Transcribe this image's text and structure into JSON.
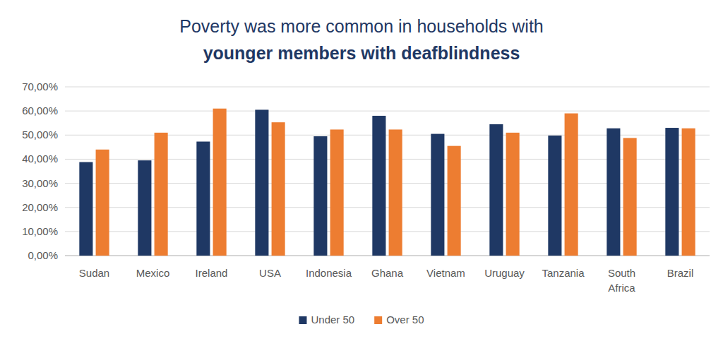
{
  "chart_data": {
    "type": "bar",
    "title": "Poverty was more common in households with",
    "subtitle": "younger members with deafblindness",
    "categories": [
      "Sudan",
      "Mexico",
      "Ireland",
      "USA",
      "Indonesia",
      "Ghana",
      "Vietnam",
      "Uruguay",
      "Tanzania",
      "South Africa",
      "Brazil"
    ],
    "series": [
      {
        "name": "Under 50",
        "color": "#1f3864",
        "values": [
          38.8,
          39.5,
          47.3,
          60.5,
          49.5,
          58.0,
          50.5,
          54.5,
          49.8,
          52.8,
          53.0
        ]
      },
      {
        "name": "Over 50",
        "color": "#ed7d31",
        "values": [
          44.0,
          51.0,
          61.0,
          55.3,
          52.3,
          52.3,
          45.5,
          51.0,
          59.0,
          48.8,
          52.8
        ]
      }
    ],
    "ylim": [
      0,
      70
    ],
    "yticks": [
      {
        "value": 0,
        "label": "0,00%"
      },
      {
        "value": 10,
        "label": "10,00%"
      },
      {
        "value": 20,
        "label": "20,00%"
      },
      {
        "value": 30,
        "label": "30,00%"
      },
      {
        "value": 40,
        "label": "40,00%"
      },
      {
        "value": 50,
        "label": "50,00%"
      },
      {
        "value": 60,
        "label": "60,00%"
      },
      {
        "value": 70,
        "label": "70,00%"
      }
    ],
    "grid": true,
    "legend": "bottom"
  }
}
